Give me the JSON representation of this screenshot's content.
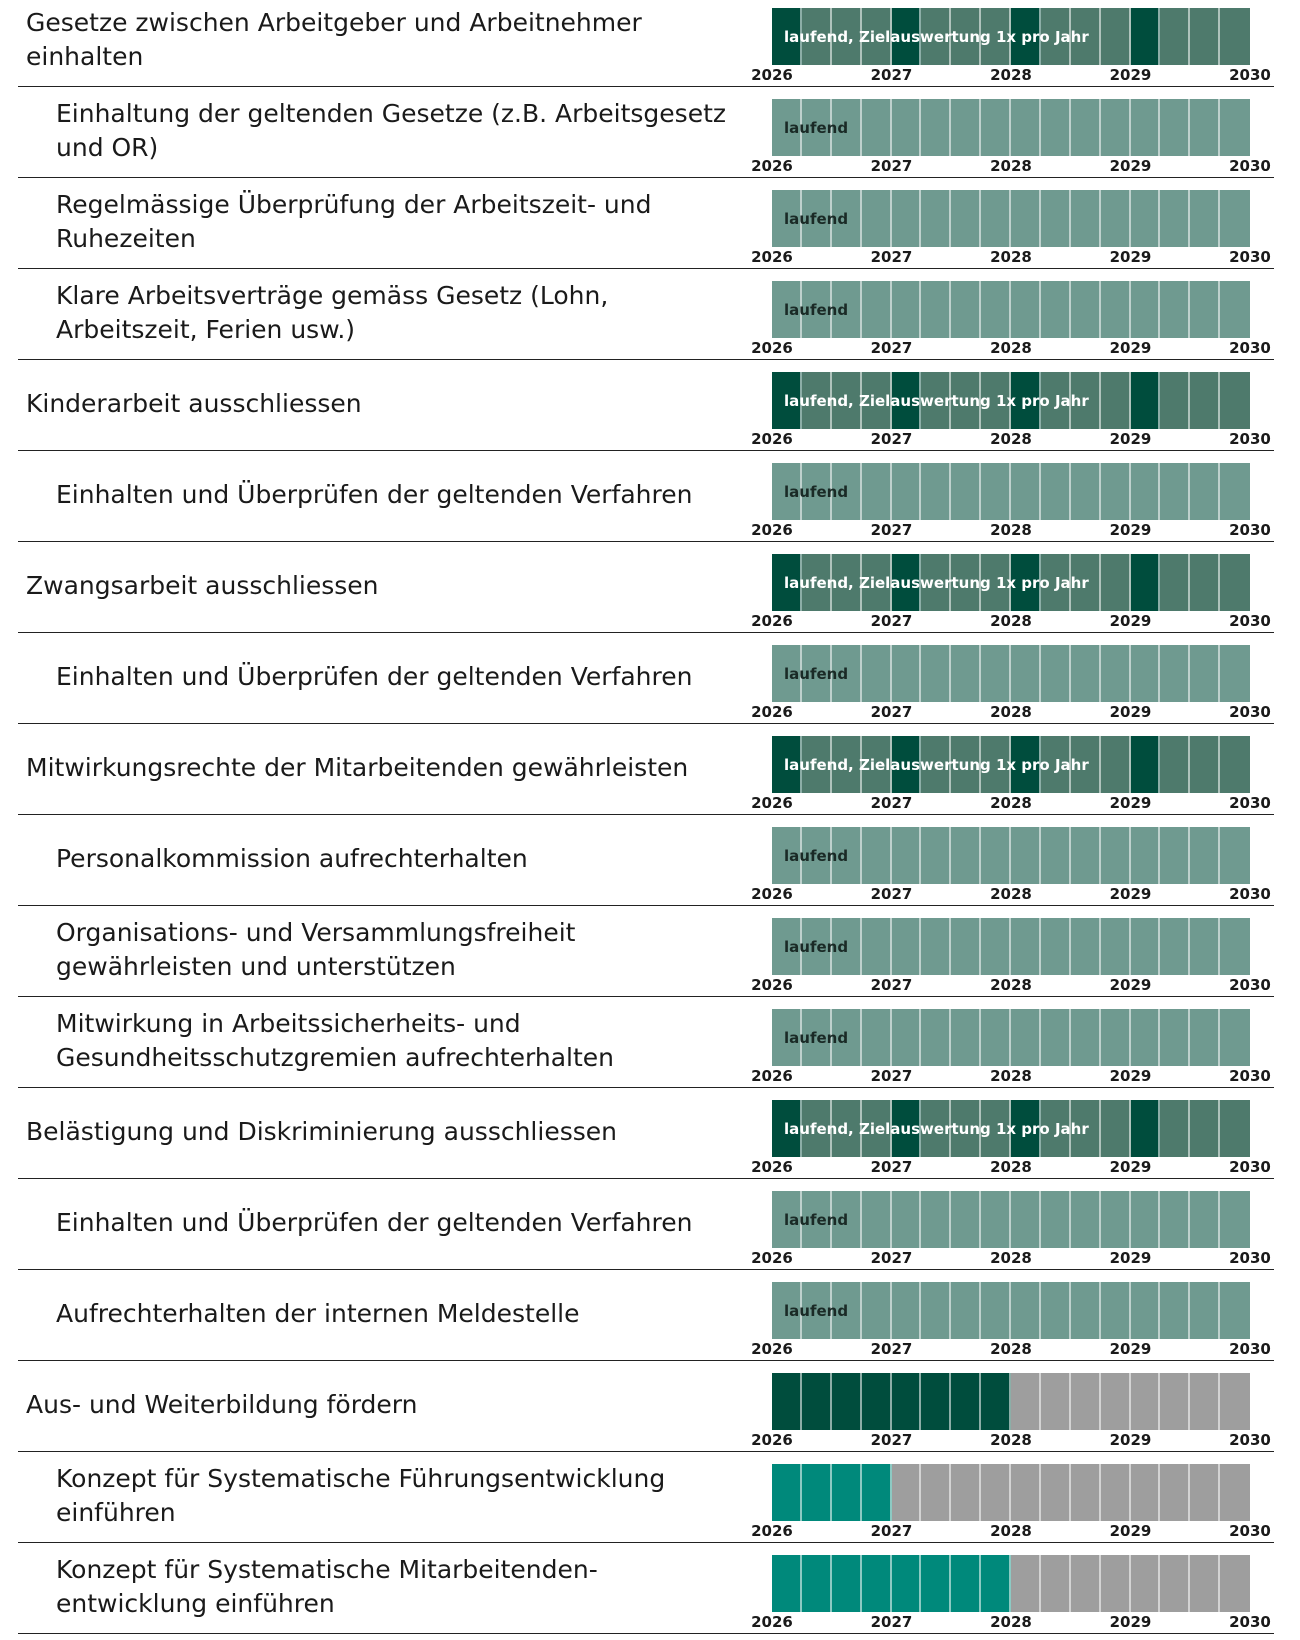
{
  "years": [
    2026,
    2027,
    2028,
    2029,
    2030
  ],
  "rows": [
    {
      "label": "Gesetze zwischen Arbeitgeber und Arbeitnehmer einhalten",
      "indent": false,
      "bar_label": "laufend, Zielauswertung 1x pro Jahr",
      "bar_label_color": "#ffffff",
      "segments": [
        "#004d3d",
        "#4e7a6c",
        "#4e7a6c",
        "#4e7a6c",
        "#004d3d",
        "#4e7a6c",
        "#4e7a6c",
        "#4e7a6c",
        "#004d3d",
        "#4e7a6c",
        "#4e7a6c",
        "#4e7a6c",
        "#004d3d",
        "#4e7a6c",
        "#4e7a6c",
        "#4e7a6c"
      ]
    },
    {
      "label": "Einhaltung der geltenden Gesetze (z.B. Arbeitsgesetz und OR)",
      "indent": true,
      "bar_label": "laufend",
      "bar_label_color": "#1a2a26",
      "segments": [
        "#6f9a90",
        "#6f9a90",
        "#6f9a90",
        "#6f9a90",
        "#6f9a90",
        "#6f9a90",
        "#6f9a90",
        "#6f9a90",
        "#6f9a90",
        "#6f9a90",
        "#6f9a90",
        "#6f9a90",
        "#6f9a90",
        "#6f9a90",
        "#6f9a90",
        "#6f9a90"
      ]
    },
    {
      "label": "Regelmässige Überprüfung der Arbeitszeit- und Ruhezeiten",
      "indent": true,
      "bar_label": "laufend",
      "bar_label_color": "#1a2a26",
      "segments": [
        "#6f9a90",
        "#6f9a90",
        "#6f9a90",
        "#6f9a90",
        "#6f9a90",
        "#6f9a90",
        "#6f9a90",
        "#6f9a90",
        "#6f9a90",
        "#6f9a90",
        "#6f9a90",
        "#6f9a90",
        "#6f9a90",
        "#6f9a90",
        "#6f9a90",
        "#6f9a90"
      ]
    },
    {
      "label": "Klare Arbeitsverträge gemäss Gesetz (Lohn, Arbeitszeit, Ferien usw.)",
      "indent": true,
      "bar_label": "laufend",
      "bar_label_color": "#1a2a26",
      "segments": [
        "#6f9a90",
        "#6f9a90",
        "#6f9a90",
        "#6f9a90",
        "#6f9a90",
        "#6f9a90",
        "#6f9a90",
        "#6f9a90",
        "#6f9a90",
        "#6f9a90",
        "#6f9a90",
        "#6f9a90",
        "#6f9a90",
        "#6f9a90",
        "#6f9a90",
        "#6f9a90"
      ]
    },
    {
      "label": "Kinderarbeit ausschliessen",
      "indent": false,
      "bar_label": "laufend, Zielauswertung 1x pro Jahr",
      "bar_label_color": "#ffffff",
      "segments": [
        "#004d3d",
        "#4e7a6c",
        "#4e7a6c",
        "#4e7a6c",
        "#004d3d",
        "#4e7a6c",
        "#4e7a6c",
        "#4e7a6c",
        "#004d3d",
        "#4e7a6c",
        "#4e7a6c",
        "#4e7a6c",
        "#004d3d",
        "#4e7a6c",
        "#4e7a6c",
        "#4e7a6c"
      ]
    },
    {
      "label": "Einhalten und Überprüfen der geltenden Verfahren",
      "indent": true,
      "bar_label": "laufend",
      "bar_label_color": "#1a2a26",
      "segments": [
        "#6f9a90",
        "#6f9a90",
        "#6f9a90",
        "#6f9a90",
        "#6f9a90",
        "#6f9a90",
        "#6f9a90",
        "#6f9a90",
        "#6f9a90",
        "#6f9a90",
        "#6f9a90",
        "#6f9a90",
        "#6f9a90",
        "#6f9a90",
        "#6f9a90",
        "#6f9a90"
      ]
    },
    {
      "label": "Zwangsarbeit ausschliessen",
      "indent": false,
      "bar_label": "laufend, Zielauswertung 1x pro Jahr",
      "bar_label_color": "#ffffff",
      "segments": [
        "#004d3d",
        "#4e7a6c",
        "#4e7a6c",
        "#4e7a6c",
        "#004d3d",
        "#4e7a6c",
        "#4e7a6c",
        "#4e7a6c",
        "#004d3d",
        "#4e7a6c",
        "#4e7a6c",
        "#4e7a6c",
        "#004d3d",
        "#4e7a6c",
        "#4e7a6c",
        "#4e7a6c"
      ]
    },
    {
      "label": "Einhalten und Überprüfen der geltenden Verfahren",
      "indent": true,
      "bar_label": "laufend",
      "bar_label_color": "#1a2a26",
      "segments": [
        "#6f9a90",
        "#6f9a90",
        "#6f9a90",
        "#6f9a90",
        "#6f9a90",
        "#6f9a90",
        "#6f9a90",
        "#6f9a90",
        "#6f9a90",
        "#6f9a90",
        "#6f9a90",
        "#6f9a90",
        "#6f9a90",
        "#6f9a90",
        "#6f9a90",
        "#6f9a90"
      ]
    },
    {
      "label": "Mitwirkungsrechte der Mitarbeitenden gewährleisten",
      "indent": false,
      "bar_label": "laufend, Zielauswertung 1x pro Jahr",
      "bar_label_color": "#ffffff",
      "segments": [
        "#004d3d",
        "#4e7a6c",
        "#4e7a6c",
        "#4e7a6c",
        "#004d3d",
        "#4e7a6c",
        "#4e7a6c",
        "#4e7a6c",
        "#004d3d",
        "#4e7a6c",
        "#4e7a6c",
        "#4e7a6c",
        "#004d3d",
        "#4e7a6c",
        "#4e7a6c",
        "#4e7a6c"
      ]
    },
    {
      "label": "Personalkommission aufrechterhalten",
      "indent": true,
      "bar_label": "laufend",
      "bar_label_color": "#1a2a26",
      "segments": [
        "#6f9a90",
        "#6f9a90",
        "#6f9a90",
        "#6f9a90",
        "#6f9a90",
        "#6f9a90",
        "#6f9a90",
        "#6f9a90",
        "#6f9a90",
        "#6f9a90",
        "#6f9a90",
        "#6f9a90",
        "#6f9a90",
        "#6f9a90",
        "#6f9a90",
        "#6f9a90"
      ]
    },
    {
      "label": "Organisations- und Versammlungsfreiheit gewährleisten und unterstützen",
      "indent": true,
      "bar_label": "laufend",
      "bar_label_color": "#1a2a26",
      "segments": [
        "#6f9a90",
        "#6f9a90",
        "#6f9a90",
        "#6f9a90",
        "#6f9a90",
        "#6f9a90",
        "#6f9a90",
        "#6f9a90",
        "#6f9a90",
        "#6f9a90",
        "#6f9a90",
        "#6f9a90",
        "#6f9a90",
        "#6f9a90",
        "#6f9a90",
        "#6f9a90"
      ]
    },
    {
      "label": "Mitwirkung in Arbeitssicherheits- und Gesundheitsschutzgremien aufrechterhalten",
      "indent": true,
      "bar_label": "laufend",
      "bar_label_color": "#1a2a26",
      "segments": [
        "#6f9a90",
        "#6f9a90",
        "#6f9a90",
        "#6f9a90",
        "#6f9a90",
        "#6f9a90",
        "#6f9a90",
        "#6f9a90",
        "#6f9a90",
        "#6f9a90",
        "#6f9a90",
        "#6f9a90",
        "#6f9a90",
        "#6f9a90",
        "#6f9a90",
        "#6f9a90"
      ]
    },
    {
      "label": "Belästigung und Diskriminierung ausschliessen",
      "indent": false,
      "bar_label": "laufend, Zielauswertung 1x pro Jahr",
      "bar_label_color": "#ffffff",
      "segments": [
        "#004d3d",
        "#4e7a6c",
        "#4e7a6c",
        "#4e7a6c",
        "#004d3d",
        "#4e7a6c",
        "#4e7a6c",
        "#4e7a6c",
        "#004d3d",
        "#4e7a6c",
        "#4e7a6c",
        "#4e7a6c",
        "#004d3d",
        "#4e7a6c",
        "#4e7a6c",
        "#4e7a6c"
      ]
    },
    {
      "label": "Einhalten und Überprüfen der geltenden Verfahren",
      "indent": true,
      "bar_label": "laufend",
      "bar_label_color": "#1a2a26",
      "segments": [
        "#6f9a90",
        "#6f9a90",
        "#6f9a90",
        "#6f9a90",
        "#6f9a90",
        "#6f9a90",
        "#6f9a90",
        "#6f9a90",
        "#6f9a90",
        "#6f9a90",
        "#6f9a90",
        "#6f9a90",
        "#6f9a90",
        "#6f9a90",
        "#6f9a90",
        "#6f9a90"
      ]
    },
    {
      "label": "Aufrechterhalten der internen Meldestelle",
      "indent": true,
      "bar_label": "laufend",
      "bar_label_color": "#1a2a26",
      "segments": [
        "#6f9a90",
        "#6f9a90",
        "#6f9a90",
        "#6f9a90",
        "#6f9a90",
        "#6f9a90",
        "#6f9a90",
        "#6f9a90",
        "#6f9a90",
        "#6f9a90",
        "#6f9a90",
        "#6f9a90",
        "#6f9a90",
        "#6f9a90",
        "#6f9a90",
        "#6f9a90"
      ]
    },
    {
      "label": "Aus- und Weiterbildung fördern",
      "indent": false,
      "segments": [
        "#004d3d",
        "#004d3d",
        "#004d3d",
        "#004d3d",
        "#004d3d",
        "#004d3d",
        "#004d3d",
        "#004d3d",
        "#9e9e9e",
        "#9e9e9e",
        "#9e9e9e",
        "#9e9e9e",
        "#9e9e9e",
        "#9e9e9e",
        "#9e9e9e",
        "#9e9e9e"
      ]
    },
    {
      "label": "Konzept für Systematische Führungsentwicklung einführen",
      "indent": true,
      "segments": [
        "#00897b",
        "#00897b",
        "#00897b",
        "#00897b",
        "#9e9e9e",
        "#9e9e9e",
        "#9e9e9e",
        "#9e9e9e",
        "#9e9e9e",
        "#9e9e9e",
        "#9e9e9e",
        "#9e9e9e",
        "#9e9e9e",
        "#9e9e9e",
        "#9e9e9e",
        "#9e9e9e"
      ]
    },
    {
      "label": "Konzept für Systematische Mitarbeitenden-entwicklung einführen",
      "indent": true,
      "segments": [
        "#00897b",
        "#00897b",
        "#00897b",
        "#00897b",
        "#00897b",
        "#00897b",
        "#00897b",
        "#00897b",
        "#9e9e9e",
        "#9e9e9e",
        "#9e9e9e",
        "#9e9e9e",
        "#9e9e9e",
        "#9e9e9e",
        "#9e9e9e",
        "#9e9e9e"
      ]
    }
  ]
}
